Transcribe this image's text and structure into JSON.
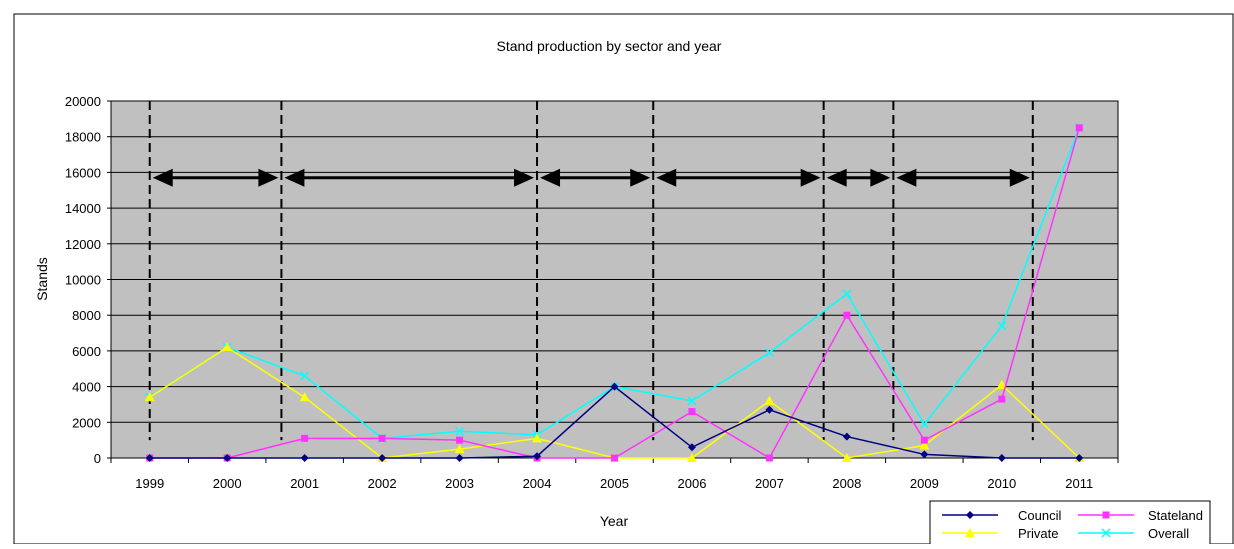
{
  "chart_data": {
    "type": "line",
    "title": "Stand production by sector and year",
    "xlabel": "Year",
    "ylabel": "Stands",
    "categories": [
      "1999",
      "2000",
      "2001",
      "2002",
      "2003",
      "2004",
      "2005",
      "2006",
      "2007",
      "2008",
      "2009",
      "2010",
      "2011"
    ],
    "ylim": [
      0,
      20000
    ],
    "yticks": [
      0,
      2000,
      4000,
      6000,
      8000,
      10000,
      12000,
      14000,
      16000,
      18000,
      20000
    ],
    "plot_background": "#c0c0c0",
    "grid": true,
    "legend_position": "bottom-right",
    "series": [
      {
        "name": "Council",
        "color": "#000080",
        "marker": "diamond",
        "values": [
          0,
          0,
          0,
          0,
          0,
          100,
          4000,
          600,
          2700,
          1200,
          200,
          0,
          0
        ]
      },
      {
        "name": "Stateland",
        "color": "#ff33ff",
        "marker": "square",
        "values": [
          0,
          0,
          1100,
          1100,
          1000,
          0,
          0,
          2600,
          0,
          8000,
          1000,
          3300,
          18500
        ]
      },
      {
        "name": "Private",
        "color": "#ffff00",
        "marker": "triangle",
        "values": [
          3400,
          6200,
          3400,
          0,
          500,
          1100,
          0,
          0,
          3200,
          0,
          700,
          4100,
          0
        ]
      },
      {
        "name": "Overall",
        "color": "#00ffff",
        "marker": "x",
        "values": [
          3400,
          6200,
          4600,
          1100,
          1500,
          1300,
          4000,
          3200,
          5900,
          9200,
          1900,
          7400,
          18500
        ]
      }
    ],
    "period_dividers": [
      1999,
      2000.7,
      2004,
      2005.5,
      2007.7,
      2008.6,
      2010.4
    ],
    "period_arrows": [
      [
        1999,
        2000.7
      ],
      [
        2000.7,
        2004
      ],
      [
        2004,
        2005.5
      ],
      [
        2005.5,
        2007.7
      ],
      [
        2007.7,
        2008.6
      ],
      [
        2008.6,
        2010.4
      ]
    ],
    "period_arrow_level": 15700
  }
}
